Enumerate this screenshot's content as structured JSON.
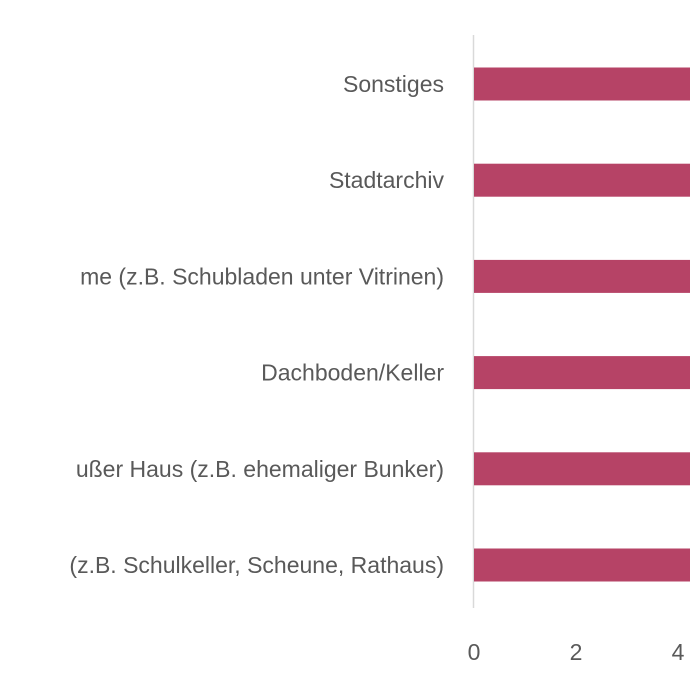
{
  "chart_data": {
    "type": "bar",
    "orientation": "horizontal",
    "categories": [
      "Sonstiges",
      "Stadtarchiv",
      "me (z.B. Schubladen unter Vitrinen)",
      "Dachboden/Keller",
      "ußer Haus (z.B. ehemaliger Bunker)",
      "(z.B. Schulkeller, Scheune, Rathaus)"
    ],
    "x_ticks": [
      "0",
      "2",
      "4"
    ],
    "colors": {
      "bar": "#b64366",
      "axis": "#d9d9d9",
      "text": "#595959"
    },
    "grid": false,
    "legend": "none"
  }
}
